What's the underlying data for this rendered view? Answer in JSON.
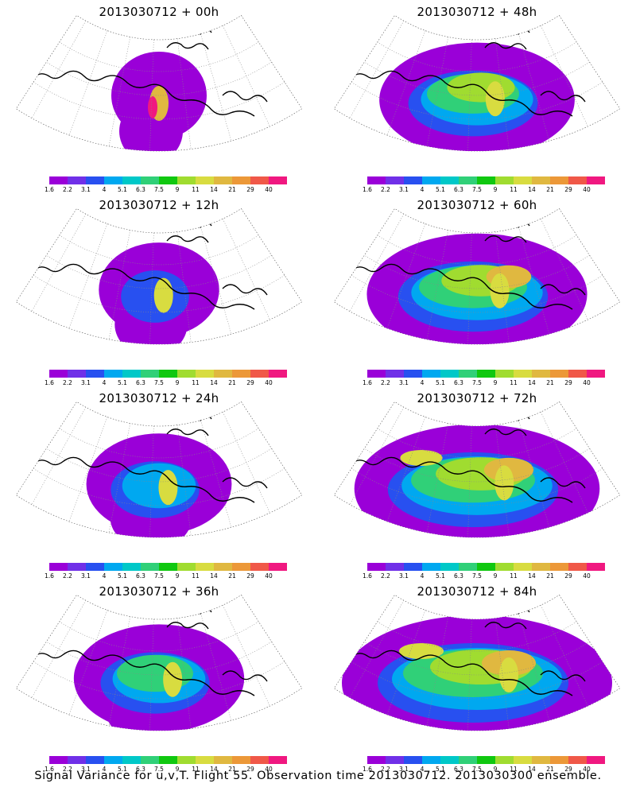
{
  "figure": {
    "caption": "Signal Variance for u,v,T. Flight 55. Observation time 2013030712. 2013030300 ensemble."
  },
  "colorbar": {
    "labels": [
      "1.6",
      "2.2",
      "3.1",
      "4",
      "5.1",
      "6.3",
      "7.5",
      "9",
      "11",
      "14",
      "21",
      "29",
      "40"
    ],
    "colors": [
      "#9a00d8",
      "#7030e8",
      "#2850f0",
      "#00a8f0",
      "#00c8c8",
      "#30d078",
      "#10c810",
      "#a0dc30",
      "#d8dc40",
      "#e0b840",
      "#ec9838",
      "#f05848",
      "#f01880"
    ]
  },
  "panels": [
    {
      "title": "2013030712 + 00h",
      "level": 0
    },
    {
      "title": "2013030712 + 48h",
      "level": 4
    },
    {
      "title": "2013030712 + 12h",
      "level": 1
    },
    {
      "title": "2013030712 + 60h",
      "level": 5
    },
    {
      "title": "2013030712 + 24h",
      "level": 2
    },
    {
      "title": "2013030712 + 72h",
      "level": 6
    },
    {
      "title": "2013030712 + 36h",
      "level": 3
    },
    {
      "title": "2013030712 + 84h",
      "level": 7
    }
  ]
}
